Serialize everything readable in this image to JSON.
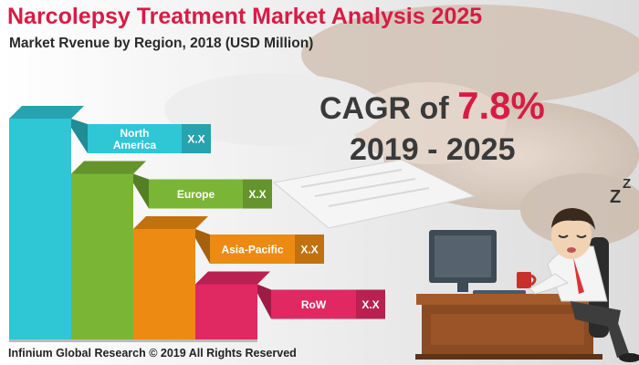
{
  "header": {
    "title": "Narcolepsy Treatment Market Analysis 2025",
    "subtitle": "Market Rvenue by Region, 2018 (USD Million)"
  },
  "cagr": {
    "prefix": "CAGR of",
    "value": "7.8%",
    "period": "2019 - 2025"
  },
  "footer": {
    "copyright": "Infinium Global Research © 2019 All Rights Reserved"
  },
  "colors": {
    "title": "#d81b45",
    "north_america": "#2fc6d6",
    "europe": "#7ab535",
    "asia_pacific": "#ed8a12",
    "row": "#e02863"
  },
  "chart_data": {
    "type": "bar",
    "categories": [
      {
        "label": "North America",
        "label_lines": [
          "North",
          "America"
        ],
        "value_label": "X.X",
        "color": "#2fc6d6"
      },
      {
        "label": "Europe",
        "label_lines": [
          "Europe"
        ],
        "value_label": "X.X",
        "color": "#7ab535"
      },
      {
        "label": "Asia-Pacific",
        "label_lines": [
          "Asia-Pacific"
        ],
        "value_label": "X.X",
        "color": "#ed8a12"
      },
      {
        "label": "RoW",
        "label_lines": [
          "RoW"
        ],
        "value_label": "X.X",
        "color": "#e02863"
      }
    ],
    "values": [
      4,
      3,
      2,
      1
    ],
    "title": "Market Rvenue by Region, 2018 (USD Million)",
    "legend": "none",
    "grid": false
  }
}
